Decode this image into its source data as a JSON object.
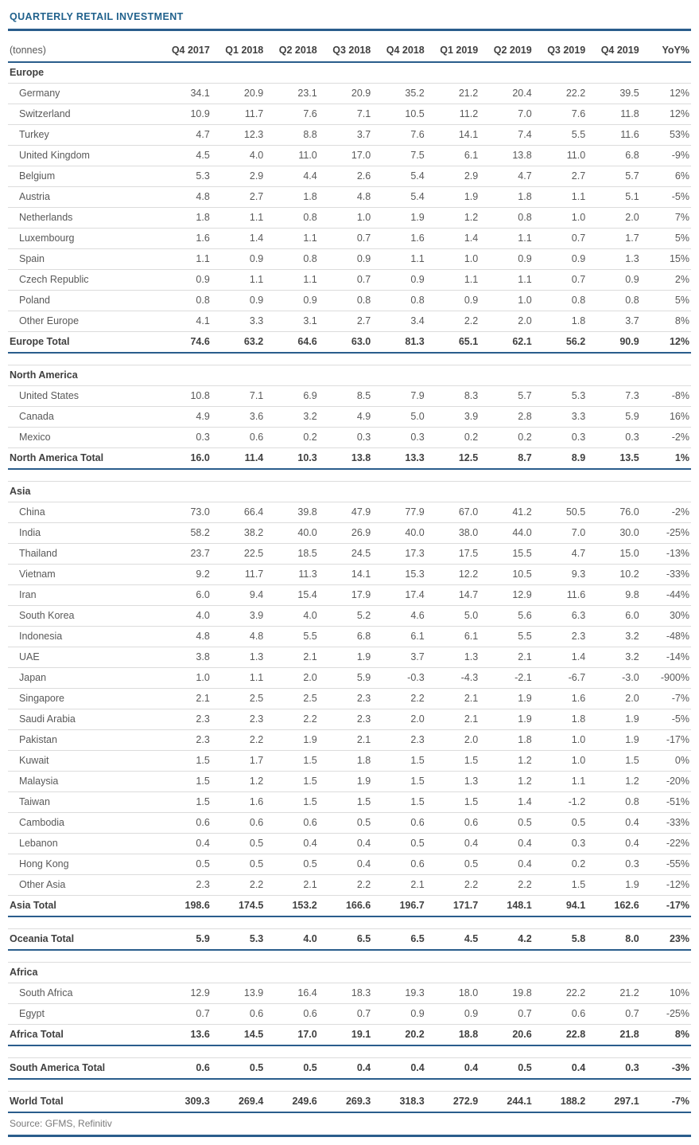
{
  "page": {
    "title": "QUARTERLY RETAIL INVESTMENT",
    "source_note": "Source: GFMS, Refinitiv"
  },
  "colors": {
    "accent_blue": "#2a5d8c",
    "thin_line": "#dcdcdc",
    "body_text": "#595959",
    "strong_text": "#404040"
  },
  "table": {
    "unit_label": "(tonnes)",
    "columns": [
      "Q4 2017",
      "Q1 2018",
      "Q2 2018",
      "Q3 2018",
      "Q4 2018",
      "Q1 2019",
      "Q2 2019",
      "Q3 2019",
      "Q4 2019",
      "YoY%"
    ],
    "rows": [
      {
        "type": "section",
        "label": "Europe"
      },
      {
        "type": "country",
        "label": "Germany",
        "values": [
          "34.1",
          "20.9",
          "23.1",
          "20.9",
          "35.2",
          "21.2",
          "20.4",
          "22.2",
          "39.5",
          "12%"
        ]
      },
      {
        "type": "country",
        "label": "Switzerland",
        "values": [
          "10.9",
          "11.7",
          "7.6",
          "7.1",
          "10.5",
          "11.2",
          "7.0",
          "7.6",
          "11.8",
          "12%"
        ]
      },
      {
        "type": "country",
        "label": "Turkey",
        "values": [
          "4.7",
          "12.3",
          "8.8",
          "3.7",
          "7.6",
          "14.1",
          "7.4",
          "5.5",
          "11.6",
          "53%"
        ]
      },
      {
        "type": "country",
        "label": "United Kingdom",
        "values": [
          "4.5",
          "4.0",
          "11.0",
          "17.0",
          "7.5",
          "6.1",
          "13.8",
          "11.0",
          "6.8",
          "-9%"
        ]
      },
      {
        "type": "country",
        "label": "Belgium",
        "values": [
          "5.3",
          "2.9",
          "4.4",
          "2.6",
          "5.4",
          "2.9",
          "4.7",
          "2.7",
          "5.7",
          "6%"
        ]
      },
      {
        "type": "country",
        "label": "Austria",
        "values": [
          "4.8",
          "2.7",
          "1.8",
          "4.8",
          "5.4",
          "1.9",
          "1.8",
          "1.1",
          "5.1",
          "-5%"
        ]
      },
      {
        "type": "country",
        "label": "Netherlands",
        "values": [
          "1.8",
          "1.1",
          "0.8",
          "1.0",
          "1.9",
          "1.2",
          "0.8",
          "1.0",
          "2.0",
          "7%"
        ]
      },
      {
        "type": "country",
        "label": "Luxembourg",
        "values": [
          "1.6",
          "1.4",
          "1.1",
          "0.7",
          "1.6",
          "1.4",
          "1.1",
          "0.7",
          "1.7",
          "5%"
        ]
      },
      {
        "type": "country",
        "label": "Spain",
        "values": [
          "1.1",
          "0.9",
          "0.8",
          "0.9",
          "1.1",
          "1.0",
          "0.9",
          "0.9",
          "1.3",
          "15%"
        ]
      },
      {
        "type": "country",
        "label": "Czech Republic",
        "values": [
          "0.9",
          "1.1",
          "1.1",
          "0.7",
          "0.9",
          "1.1",
          "1.1",
          "0.7",
          "0.9",
          "2%"
        ]
      },
      {
        "type": "country",
        "label": "Poland",
        "values": [
          "0.8",
          "0.9",
          "0.9",
          "0.8",
          "0.8",
          "0.9",
          "1.0",
          "0.8",
          "0.8",
          "5%"
        ]
      },
      {
        "type": "country",
        "label": "Other Europe",
        "values": [
          "4.1",
          "3.3",
          "3.1",
          "2.7",
          "3.4",
          "2.2",
          "2.0",
          "1.8",
          "3.7",
          "8%"
        ]
      },
      {
        "type": "total",
        "label": "Europe Total",
        "values": [
          "74.6",
          "63.2",
          "64.6",
          "63.0",
          "81.3",
          "65.1",
          "62.1",
          "56.2",
          "90.9",
          "12%"
        ]
      },
      {
        "type": "spacer"
      },
      {
        "type": "section",
        "label": "North America"
      },
      {
        "type": "country",
        "label": "United States",
        "values": [
          "10.8",
          "7.1",
          "6.9",
          "8.5",
          "7.9",
          "8.3",
          "5.7",
          "5.3",
          "7.3",
          "-8%"
        ]
      },
      {
        "type": "country",
        "label": "Canada",
        "values": [
          "4.9",
          "3.6",
          "3.2",
          "4.9",
          "5.0",
          "3.9",
          "2.8",
          "3.3",
          "5.9",
          "16%"
        ]
      },
      {
        "type": "country",
        "label": "Mexico",
        "values": [
          "0.3",
          "0.6",
          "0.2",
          "0.3",
          "0.3",
          "0.2",
          "0.2",
          "0.3",
          "0.3",
          "-2%"
        ]
      },
      {
        "type": "total",
        "label": "North America Total",
        "values": [
          "16.0",
          "11.4",
          "10.3",
          "13.8",
          "13.3",
          "12.5",
          "8.7",
          "8.9",
          "13.5",
          "1%"
        ]
      },
      {
        "type": "spacer"
      },
      {
        "type": "section",
        "label": "Asia"
      },
      {
        "type": "country",
        "label": "China",
        "values": [
          "73.0",
          "66.4",
          "39.8",
          "47.9",
          "77.9",
          "67.0",
          "41.2",
          "50.5",
          "76.0",
          "-2%"
        ]
      },
      {
        "type": "country",
        "label": "India",
        "values": [
          "58.2",
          "38.2",
          "40.0",
          "26.9",
          "40.0",
          "38.0",
          "44.0",
          "7.0",
          "30.0",
          "-25%"
        ]
      },
      {
        "type": "country",
        "label": "Thailand",
        "values": [
          "23.7",
          "22.5",
          "18.5",
          "24.5",
          "17.3",
          "17.5",
          "15.5",
          "4.7",
          "15.0",
          "-13%"
        ]
      },
      {
        "type": "country",
        "label": "Vietnam",
        "values": [
          "9.2",
          "11.7",
          "11.3",
          "14.1",
          "15.3",
          "12.2",
          "10.5",
          "9.3",
          "10.2",
          "-33%"
        ]
      },
      {
        "type": "country",
        "label": "Iran",
        "values": [
          "6.0",
          "9.4",
          "15.4",
          "17.9",
          "17.4",
          "14.7",
          "12.9",
          "11.6",
          "9.8",
          "-44%"
        ]
      },
      {
        "type": "country",
        "label": "South Korea",
        "values": [
          "4.0",
          "3.9",
          "4.0",
          "5.2",
          "4.6",
          "5.0",
          "5.6",
          "6.3",
          "6.0",
          "30%"
        ]
      },
      {
        "type": "country",
        "label": "Indonesia",
        "values": [
          "4.8",
          "4.8",
          "5.5",
          "6.8",
          "6.1",
          "6.1",
          "5.5",
          "2.3",
          "3.2",
          "-48%"
        ]
      },
      {
        "type": "country",
        "label": "UAE",
        "values": [
          "3.8",
          "1.3",
          "2.1",
          "1.9",
          "3.7",
          "1.3",
          "2.1",
          "1.4",
          "3.2",
          "-14%"
        ]
      },
      {
        "type": "country",
        "label": "Japan",
        "values": [
          "1.0",
          "1.1",
          "2.0",
          "5.9",
          "-0.3",
          "-4.3",
          "-2.1",
          "-6.7",
          "-3.0",
          "-900%"
        ]
      },
      {
        "type": "country",
        "label": "Singapore",
        "values": [
          "2.1",
          "2.5",
          "2.5",
          "2.3",
          "2.2",
          "2.1",
          "1.9",
          "1.6",
          "2.0",
          "-7%"
        ]
      },
      {
        "type": "country",
        "label": "Saudi Arabia",
        "values": [
          "2.3",
          "2.3",
          "2.2",
          "2.3",
          "2.0",
          "2.1",
          "1.9",
          "1.8",
          "1.9",
          "-5%"
        ]
      },
      {
        "type": "country",
        "label": "Pakistan",
        "values": [
          "2.3",
          "2.2",
          "1.9",
          "2.1",
          "2.3",
          "2.0",
          "1.8",
          "1.0",
          "1.9",
          "-17%"
        ]
      },
      {
        "type": "country",
        "label": "Kuwait",
        "values": [
          "1.5",
          "1.7",
          "1.5",
          "1.8",
          "1.5",
          "1.5",
          "1.2",
          "1.0",
          "1.5",
          "0%"
        ]
      },
      {
        "type": "country",
        "label": "Malaysia",
        "values": [
          "1.5",
          "1.2",
          "1.5",
          "1.9",
          "1.5",
          "1.3",
          "1.2",
          "1.1",
          "1.2",
          "-20%"
        ]
      },
      {
        "type": "country",
        "label": "Taiwan",
        "values": [
          "1.5",
          "1.6",
          "1.5",
          "1.5",
          "1.5",
          "1.5",
          "1.4",
          "-1.2",
          "0.8",
          "-51%"
        ]
      },
      {
        "type": "country",
        "label": "Cambodia",
        "values": [
          "0.6",
          "0.6",
          "0.6",
          "0.5",
          "0.6",
          "0.6",
          "0.5",
          "0.5",
          "0.4",
          "-33%"
        ]
      },
      {
        "type": "country",
        "label": "Lebanon",
        "values": [
          "0.4",
          "0.5",
          "0.4",
          "0.4",
          "0.5",
          "0.4",
          "0.4",
          "0.3",
          "0.4",
          "-22%"
        ]
      },
      {
        "type": "country",
        "label": "Hong Kong",
        "values": [
          "0.5",
          "0.5",
          "0.5",
          "0.4",
          "0.6",
          "0.5",
          "0.4",
          "0.2",
          "0.3",
          "-55%"
        ]
      },
      {
        "type": "country",
        "label": "Other Asia",
        "values": [
          "2.3",
          "2.2",
          "2.1",
          "2.2",
          "2.1",
          "2.2",
          "2.2",
          "1.5",
          "1.9",
          "-12%"
        ]
      },
      {
        "type": "total",
        "label": "Asia Total",
        "values": [
          "198.6",
          "174.5",
          "153.2",
          "166.6",
          "196.7",
          "171.7",
          "148.1",
          "94.1",
          "162.6",
          "-17%"
        ]
      },
      {
        "type": "spacer"
      },
      {
        "type": "total",
        "label": "Oceania Total",
        "values": [
          "5.9",
          "5.3",
          "4.0",
          "6.5",
          "6.5",
          "4.5",
          "4.2",
          "5.8",
          "8.0",
          "23%"
        ]
      },
      {
        "type": "spacer"
      },
      {
        "type": "section",
        "label": "Africa"
      },
      {
        "type": "country",
        "label": "South Africa",
        "values": [
          "12.9",
          "13.9",
          "16.4",
          "18.3",
          "19.3",
          "18.0",
          "19.8",
          "22.2",
          "21.2",
          "10%"
        ]
      },
      {
        "type": "country",
        "label": "Egypt",
        "values": [
          "0.7",
          "0.6",
          "0.6",
          "0.7",
          "0.9",
          "0.9",
          "0.7",
          "0.6",
          "0.7",
          "-25%"
        ]
      },
      {
        "type": "total",
        "label": "Africa Total",
        "values": [
          "13.6",
          "14.5",
          "17.0",
          "19.1",
          "20.2",
          "18.8",
          "20.6",
          "22.8",
          "21.8",
          "8%"
        ]
      },
      {
        "type": "spacer"
      },
      {
        "type": "total",
        "label": "South America Total",
        "values": [
          "0.6",
          "0.5",
          "0.5",
          "0.4",
          "0.4",
          "0.4",
          "0.5",
          "0.4",
          "0.3",
          "-3%"
        ]
      },
      {
        "type": "spacer"
      },
      {
        "type": "total",
        "label": "World Total",
        "values": [
          "309.3",
          "269.4",
          "249.6",
          "269.3",
          "318.3",
          "272.9",
          "244.1",
          "188.2",
          "297.1",
          "-7%"
        ]
      }
    ]
  }
}
